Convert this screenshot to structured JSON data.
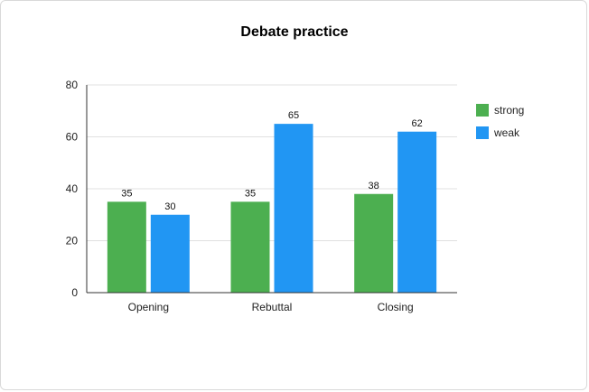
{
  "chart_data": {
    "type": "bar",
    "title": "Debate practice",
    "categories": [
      "Opening",
      "Rebuttal",
      "Closing"
    ],
    "series": [
      {
        "name": "strong",
        "values": [
          35,
          35,
          38
        ],
        "color": "#4caf50"
      },
      {
        "name": "weak",
        "values": [
          30,
          65,
          62
        ],
        "color": "#2196f3"
      }
    ],
    "ylim": [
      0,
      80
    ],
    "yticks": [
      0,
      20,
      40,
      60,
      80
    ],
    "grid": true,
    "legend": "right",
    "data_labels": true
  }
}
